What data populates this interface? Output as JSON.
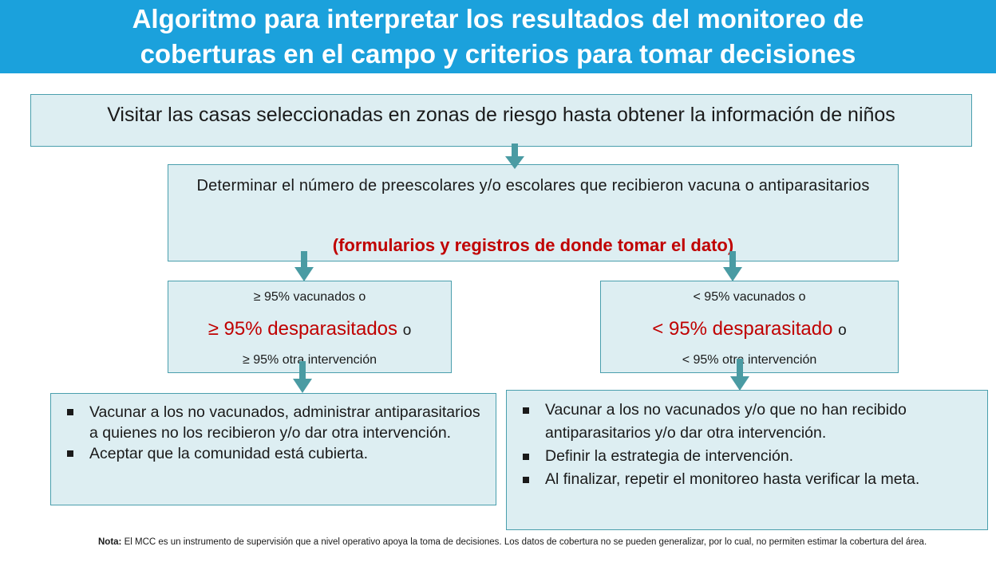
{
  "header": {
    "title_line1": "Algoritmo para interpretar los resultados del monitoreo de",
    "title_line2": "coberturas en el campo y criterios para tomar decisiones"
  },
  "step1": {
    "text": "Visitar las casas seleccionadas en zonas de riesgo hasta obtener la información de niños"
  },
  "step2": {
    "text": "Determinar el número de preescolares y/o escolares que recibieron vacuna o antiparasitarios",
    "highlight": "(formularios y registros de donde tomar el dato)"
  },
  "left_branch": {
    "line1": "≥ 95%  vacunados o",
    "line2": "≥ 95% desparasitados",
    "line2_suffix": "o",
    "line3": "≥ 95% otra intervención",
    "actions": [
      "Vacunar a los no vacunados, administrar antiparasitarios a quienes no los recibieron y/o dar otra intervención.",
      "Aceptar que la comunidad está cubierta."
    ]
  },
  "right_branch": {
    "line1": "< 95%  vacunados o",
    "line2": "< 95% desparasitado",
    "line2_suffix": "o",
    "line3": "< 95% otra intervención",
    "actions": [
      "Vacunar a los no vacunados y/o que no han recibido antiparasitarios y/o dar otra intervención.",
      "Definir la estrategia de intervención.",
      "Al finalizar, repetir el monitoreo hasta verificar la meta."
    ]
  },
  "note": {
    "label": "Nota:",
    "text": "El MCC es un instrumento de supervisión que a nivel operativo apoya la toma de decisiones. Los datos de cobertura no se pueden generalizar, por lo cual, no permiten estimar la cobertura del área."
  },
  "colors": {
    "header_bg": "#1ba1dc",
    "box_bg": "#ddeef2",
    "box_border": "#4a9fad",
    "arrow": "#4a9ba3",
    "highlight": "#c00000"
  }
}
